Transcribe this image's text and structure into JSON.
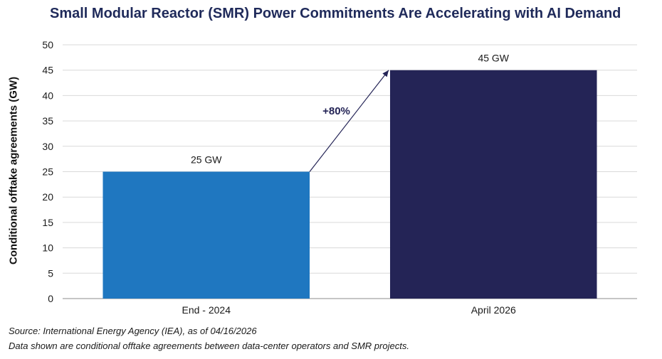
{
  "chart_data": {
    "type": "bar",
    "title": "Small Modular Reactor (SMR) Power Commitments Are Accelerating with AI Demand",
    "xlabel": "",
    "ylabel": "Conditional offtake agreements (GW)",
    "ylim": [
      0,
      50
    ],
    "yticks": [
      0,
      5,
      10,
      15,
      20,
      25,
      30,
      35,
      40,
      45,
      50
    ],
    "grid": true,
    "categories": [
      "End - 2024",
      "April 2026"
    ],
    "values": [
      25,
      45
    ],
    "data_labels": [
      "25 GW",
      "45 GW"
    ],
    "colors": [
      "#1f77c0",
      "#242456"
    ],
    "annotation": {
      "text": "+80%",
      "from": "End - 2024",
      "to": "April 2026"
    }
  },
  "notes": {
    "source": "Source: International Energy Agency (IEA), as of 04/16/2026",
    "description": "Data shown are conditional offtake agreements between data-center operators and SMR projects."
  }
}
